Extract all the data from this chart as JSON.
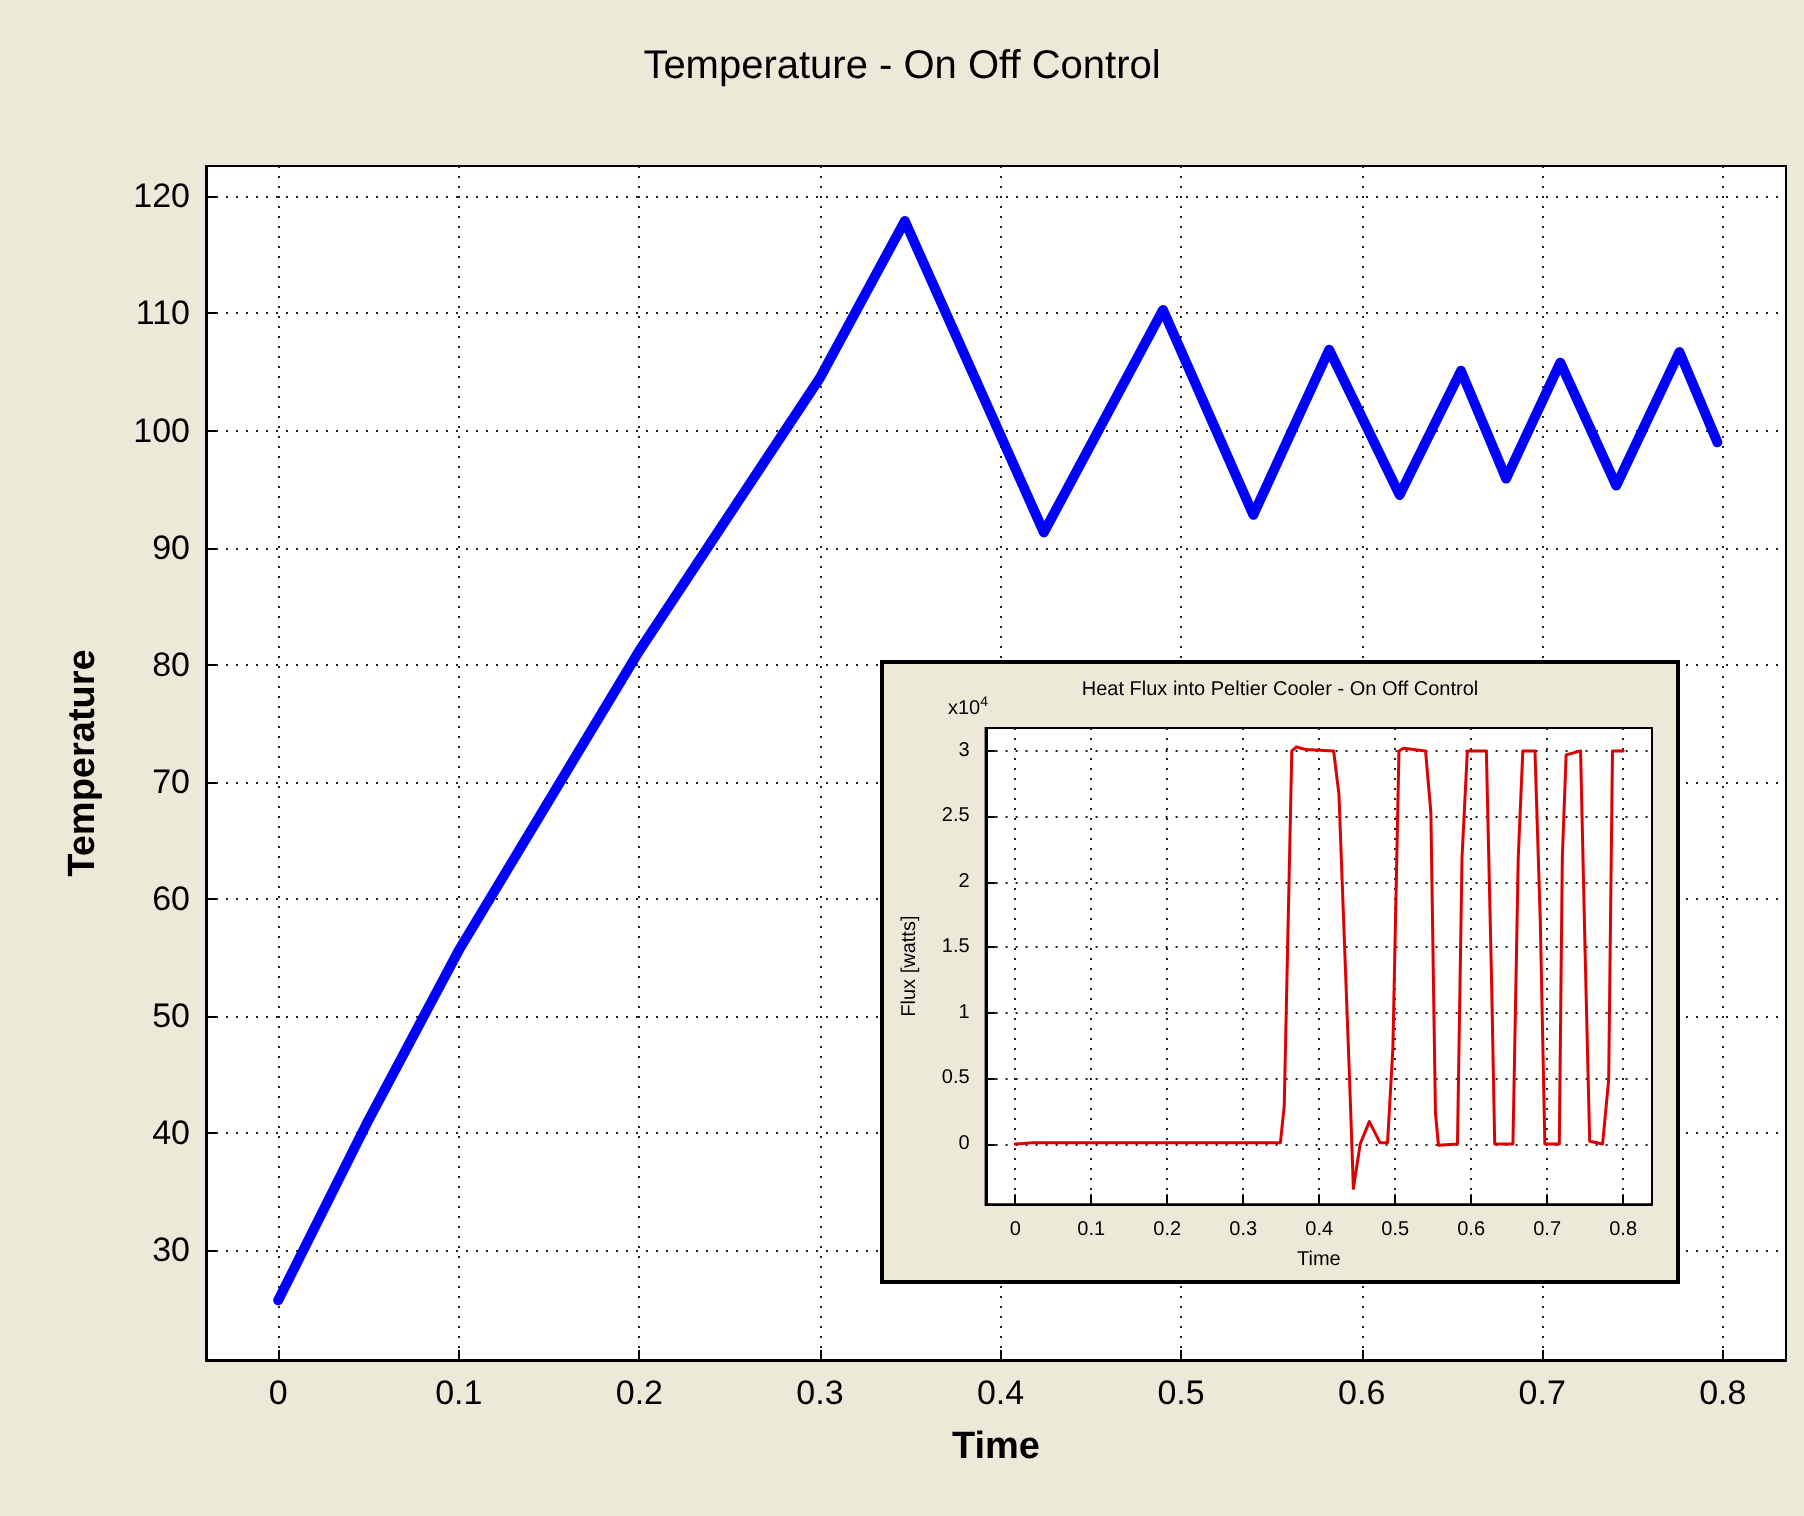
{
  "chart_data": [
    {
      "type": "line",
      "title": "Temperature - On Off Control",
      "xlabel": "Time",
      "ylabel": "Temperature",
      "x": [
        0,
        0.05,
        0.1,
        0.2,
        0.3,
        0.347,
        0.424,
        0.49,
        0.54,
        0.582,
        0.621,
        0.655,
        0.68,
        0.71,
        0.741,
        0.776,
        0.797
      ],
      "series": [
        {
          "color": "#0000ff",
          "values": [
            25.7,
            41.1,
            55.6,
            81.2,
            104.5,
            117.9,
            91.3,
            110.3,
            92.8,
            106.9,
            94.5,
            105.1,
            95.9,
            105.8,
            95.3,
            106.7,
            99
          ]
        }
      ],
      "xlim": [
        -0.04,
        0.835
      ],
      "ylim": [
        20.6,
        122.6
      ],
      "xticks": [
        0,
        0.1,
        0.2,
        0.3,
        0.4,
        0.5,
        0.6,
        0.7,
        0.8
      ],
      "yticks": [
        30,
        40,
        50,
        60,
        70,
        80,
        90,
        100,
        110,
        120
      ],
      "grid": true,
      "marker": "none",
      "line_style": "solid"
    },
    {
      "type": "line",
      "title": "Heat Flux into Peltier Cooler - On Off Control",
      "xlabel": "Time",
      "ylabel": "Flux [watts]",
      "annotations": [
        "x10$^{4}$"
      ],
      "x": [
        0,
        0.025,
        0.349,
        0.354,
        0.364,
        0.37,
        0.383,
        0.419,
        0.426,
        0.44,
        0.445,
        0.454,
        0.466,
        0.48,
        0.49,
        0.497,
        0.505,
        0.511,
        0.54,
        0.547,
        0.553,
        0.557,
        0.582,
        0.588,
        0.595,
        0.62,
        0.627,
        0.631,
        0.655,
        0.662,
        0.668,
        0.684,
        0.691,
        0.697,
        0.716,
        0.72,
        0.725,
        0.744,
        0.75,
        0.756,
        0.773,
        0.781,
        0.786,
        0.8
      ],
      "series": [
        {
          "color": "#dd0000",
          "values": [
            0,
            0.01,
            0.01,
            0.29,
            3.0,
            3.03,
            3.01,
            3.0,
            2.67,
            0.49,
            -0.34,
            0,
            0.17,
            0.01,
            0.01,
            0.73,
            3.0,
            3.02,
            3.0,
            2.53,
            0.24,
            -0.01,
            0,
            2.19,
            3.0,
            3.0,
            1.22,
            0,
            0,
            2.19,
            3.0,
            3.0,
            1.7,
            0,
            0,
            2.19,
            2.97,
            3.0,
            1.46,
            0.02,
            0,
            0.49,
            3.0,
            3.0
          ]
        }
      ],
      "xlim": [
        -0.039,
        0.838
      ],
      "ylim": [
        -0.46,
        3.175
      ],
      "xticks": [
        0,
        0.1,
        0.2,
        0.3,
        0.4,
        0.5,
        0.6,
        0.7,
        0.8
      ],
      "yticks": [
        0,
        0.5,
        1,
        1.5,
        2,
        2.5,
        3
      ],
      "grid": true,
      "marker": "none",
      "line_style": "solid"
    }
  ]
}
